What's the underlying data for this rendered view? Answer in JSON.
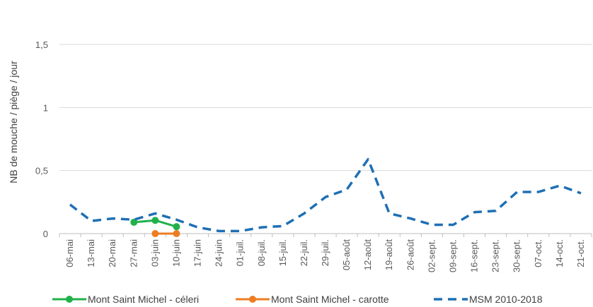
{
  "chart_data": {
    "type": "line",
    "title": "",
    "xlabel": "",
    "ylabel": "NB de mouche / piège / jour",
    "ylim": [
      0,
      1.5
    ],
    "yticks": [
      "0",
      "0,5",
      "1",
      "1,5"
    ],
    "ytick_values": [
      0,
      0.5,
      1,
      1.5
    ],
    "grid": "horizontal",
    "legend_position": "bottom",
    "categories": [
      "06-mai",
      "13-mai",
      "20-mai",
      "27-mai",
      "03-juin",
      "10-juin",
      "17-juin",
      "24-juin",
      "01-juil.",
      "08-juil.",
      "15-juil.",
      "22-juil.",
      "29-juil.",
      "05-août",
      "12-août",
      "19-août",
      "26-août",
      "02-sept.",
      "09-sept.",
      "16-sept.",
      "23-sept.",
      "30-sept.",
      "07-oct.",
      "14-oct.",
      "21-oct."
    ],
    "series": [
      {
        "name": "Mont Saint Michel - céleri",
        "color": "#21b14b",
        "style": "solid-marker",
        "values": [
          null,
          null,
          null,
          0.09,
          0.105,
          0.055,
          null,
          null,
          null,
          null,
          null,
          null,
          null,
          null,
          null,
          null,
          null,
          null,
          null,
          null,
          null,
          null,
          null,
          null,
          null
        ]
      },
      {
        "name": "Mont Saint Michel - carotte",
        "color": "#ec7d22",
        "style": "solid-marker",
        "values": [
          null,
          null,
          null,
          null,
          0.0,
          0.0,
          null,
          null,
          null,
          null,
          null,
          null,
          null,
          null,
          null,
          null,
          null,
          null,
          null,
          null,
          null,
          null,
          null,
          null,
          null
        ]
      },
      {
        "name": "MSM 2010-2018",
        "color": "#1f6fb4",
        "style": "dashed",
        "values": [
          0.23,
          0.1,
          0.12,
          0.11,
          0.16,
          0.11,
          0.05,
          0.02,
          0.02,
          0.05,
          0.06,
          0.16,
          0.29,
          0.35,
          0.59,
          0.16,
          0.12,
          0.07,
          0.07,
          0.17,
          0.18,
          0.33,
          0.33,
          0.38,
          0.32
        ]
      }
    ]
  }
}
